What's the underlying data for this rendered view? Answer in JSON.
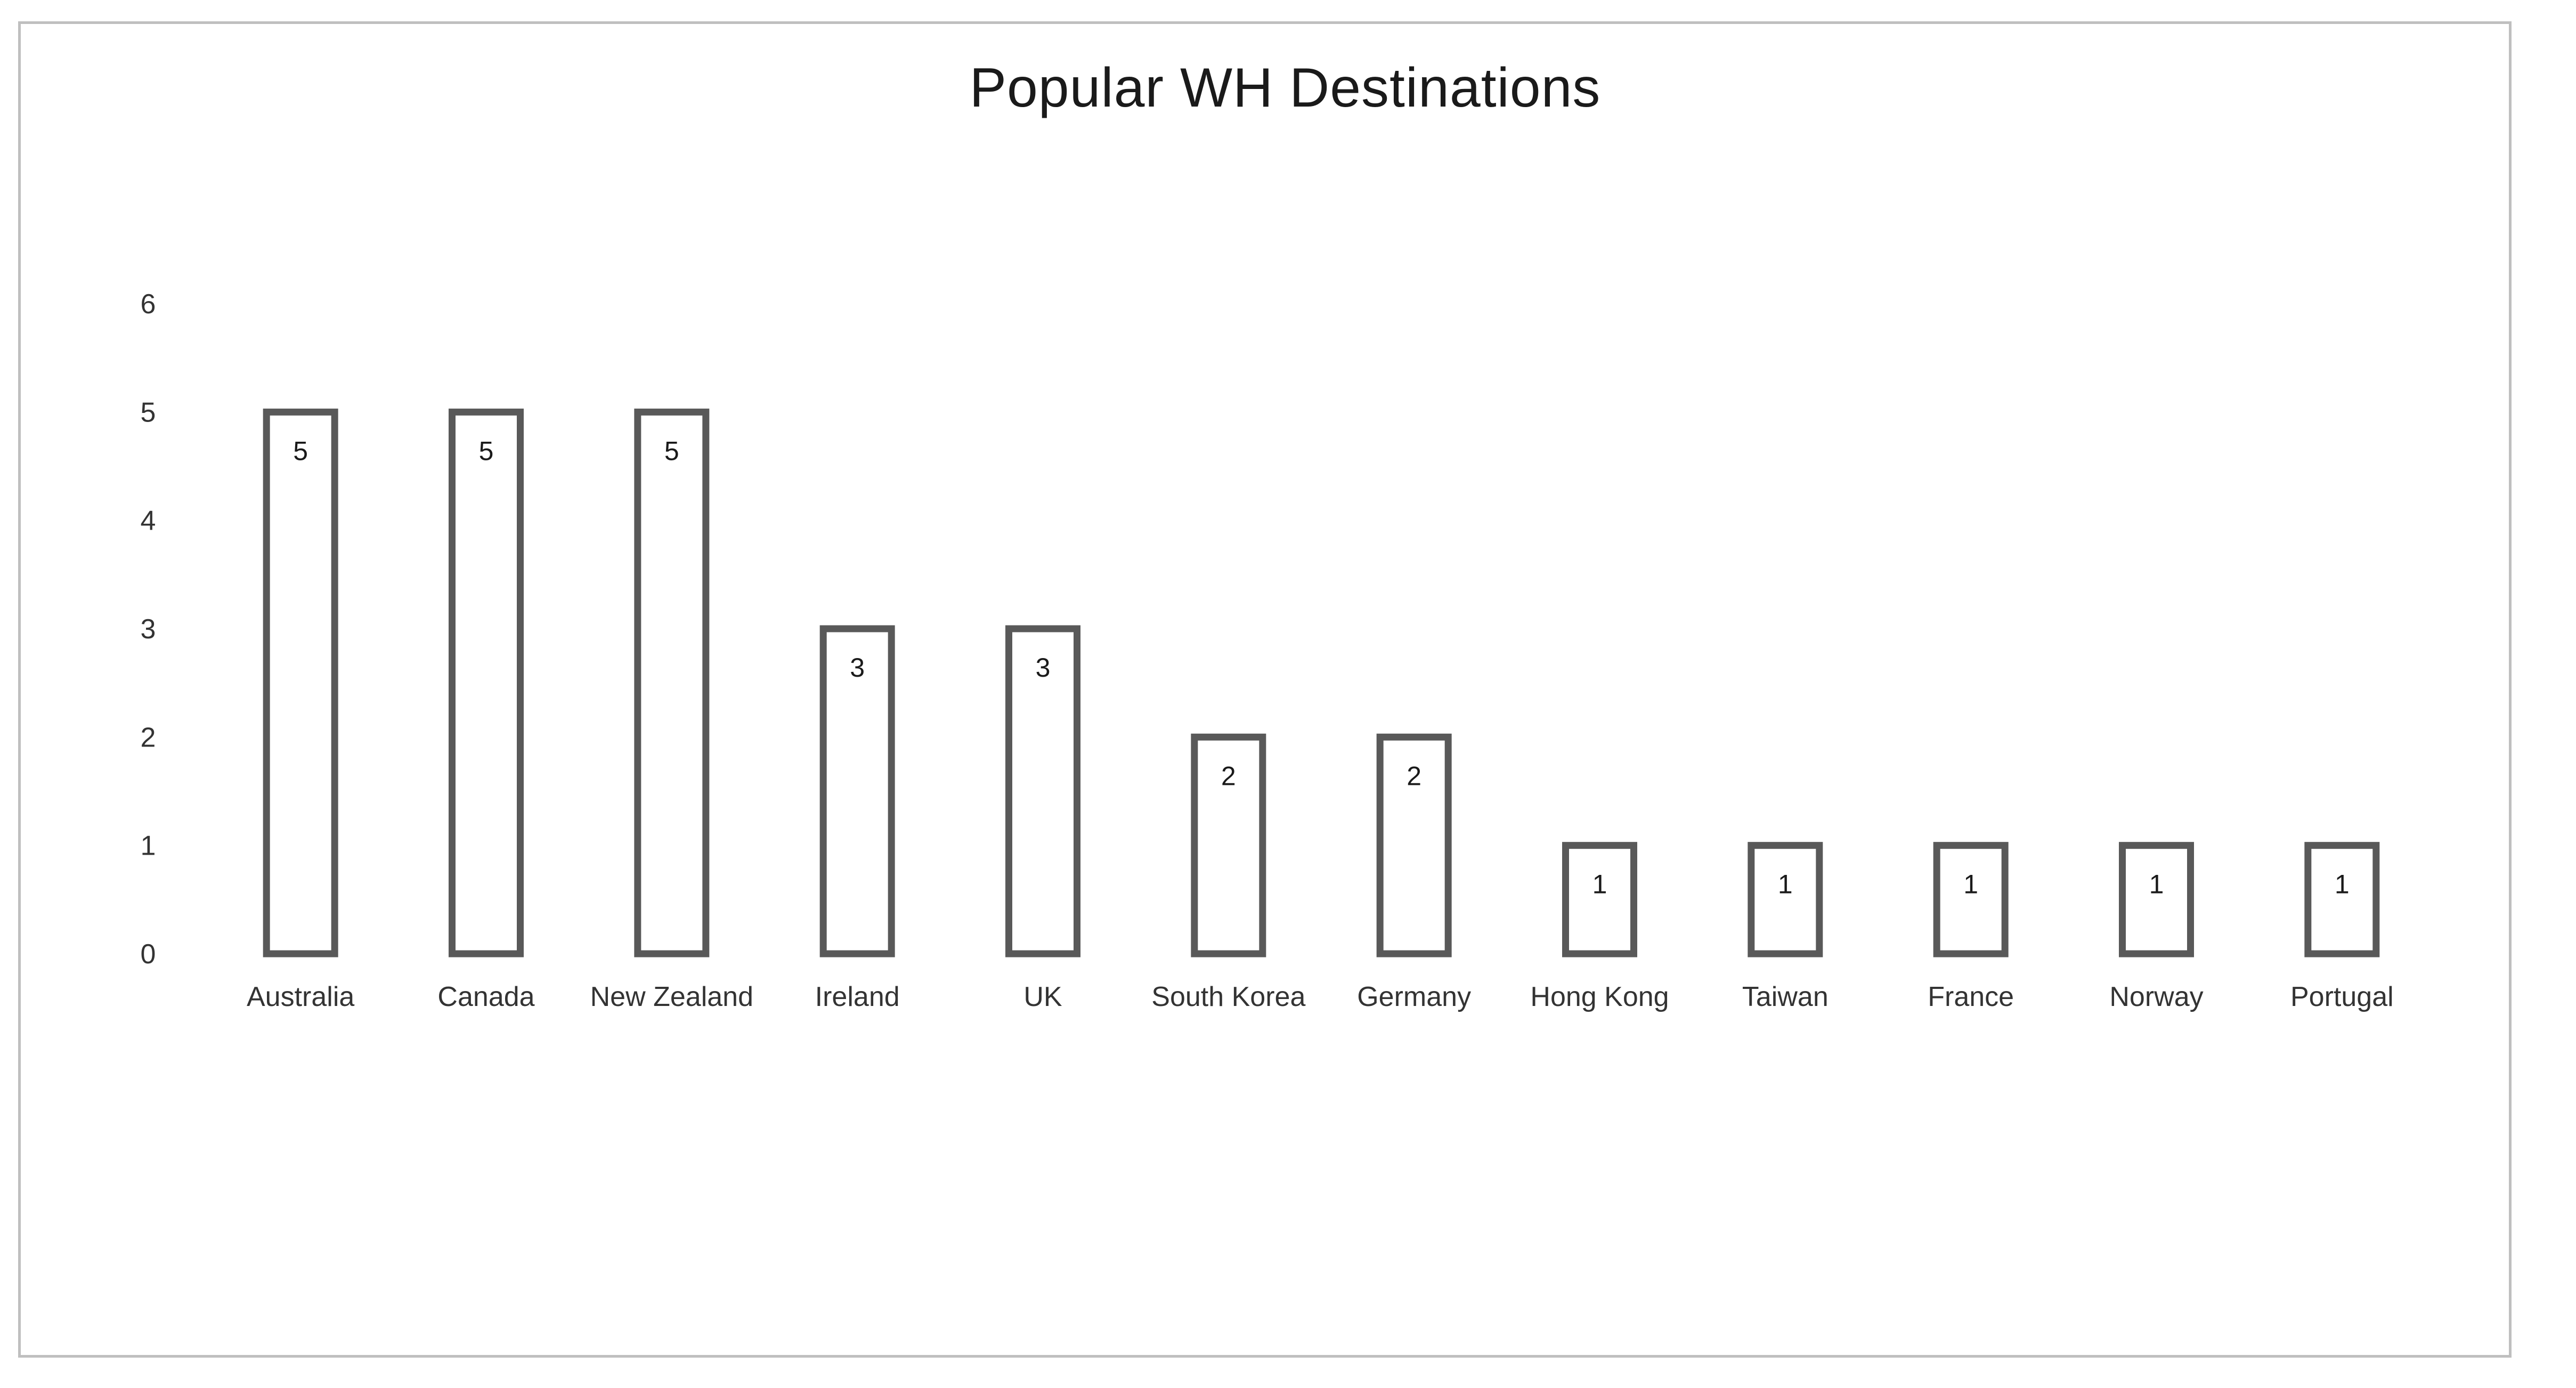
{
  "chart_data": {
    "type": "bar",
    "title": "Popular WH Destinations",
    "xlabel": "",
    "ylabel": "",
    "categories": [
      "Australia",
      "Canada",
      "New Zealand",
      "Ireland",
      "UK",
      "South Korea",
      "Germany",
      "Hong Kong",
      "Taiwan",
      "France",
      "Norway",
      "Portugal"
    ],
    "values": [
      5,
      5,
      5,
      3,
      3,
      2,
      2,
      1,
      1,
      1,
      1,
      1
    ],
    "ylim": [
      0,
      6
    ],
    "yticks": [
      "0",
      "1",
      "2",
      "3",
      "4",
      "5",
      "6"
    ],
    "grid": false,
    "legend": "none",
    "data_labels": true,
    "colors": {
      "bar_fill": "#ffffff",
      "bar_stroke": "#595959",
      "frame": "#bfbfbf",
      "text": "#333333"
    }
  }
}
